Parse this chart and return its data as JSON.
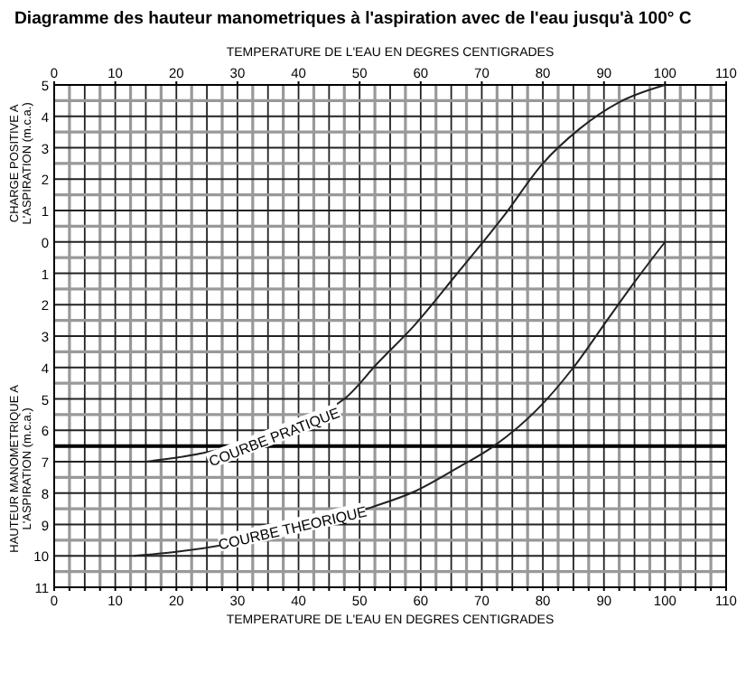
{
  "chart_data": {
    "type": "line",
    "title": "Diagramme des hauteur manometriques à l'aspiration avec de l'eau jusqu'à 100° C",
    "xlabel": "TEMPERATURE DE L'EAU EN DEGRES CENTIGRADES",
    "x2label": "TEMPERATURE DE L'EAU EN DEGRES CENTIGRADES",
    "ylabel": "CHARGE POSITIVE A L'ASPIRATION (m.c.a.)",
    "xlim": [
      0,
      110
    ],
    "x2lim": [
      0,
      110
    ],
    "xticks": [
      0,
      {
        "value": 2.5,
        "label": null
      },
      {
        "value": 5,
        "label": null
      },
      {
        "value": 7.5,
        "label": null
      },
      10,
      {
        "value": 12.5,
        "label": null
      },
      {
        "value": 15,
        "label": null
      },
      {
        "value": 17.5,
        "label": null
      },
      20,
      {
        "value": 22.5,
        "label": null
      },
      {
        "value": 25,
        "label": null
      },
      {
        "value": 27.5,
        "label": null
      },
      30,
      {
        "value": 32.5,
        "label": null
      },
      {
        "value": 35,
        "label": null
      },
      {
        "value": 37.5,
        "label": null
      },
      40,
      {
        "value": 42.5,
        "label": null
      },
      {
        "value": 45,
        "label": null
      },
      {
        "value": 47.5,
        "label": null
      },
      50,
      {
        "value": 52.5,
        "label": null
      },
      {
        "value": 55,
        "label": null
      },
      {
        "value": 57.5,
        "label": null
      },
      60,
      {
        "value": 62.5,
        "label": null
      },
      {
        "value": 65,
        "label": null
      },
      {
        "value": 67.5,
        "label": null
      },
      70,
      {
        "value": 72.5,
        "label": null
      },
      {
        "value": 75,
        "label": null
      },
      {
        "value": 77.5,
        "label": null
      },
      80,
      {
        "value": 82.5,
        "label": null
      },
      {
        "value": 85,
        "label": null
      },
      {
        "value": 87.5,
        "label": null
      },
      90,
      {
        "value": 92.5,
        "label": null
      },
      {
        "value": 95,
        "label": null
      },
      {
        "value": 97.5,
        "label": null
      },
      100,
      {
        "value": 102.5,
        "label": null
      },
      {
        "value": 105,
        "label": null
      },
      {
        "value": 107.5,
        "label": null
      },
      110
    ],
    "x2ticks": [
      0,
      10,
      20,
      30,
      40,
      50,
      60,
      70,
      80,
      90,
      100,
      110
    ],
    "ylim": [
      -11,
      5
    ],
    "yticks": [
      5,
      {
        "value": 4.5,
        "label": null
      },
      4,
      {
        "value": 3.5,
        "label": null
      },
      3,
      {
        "value": 2.5,
        "label": null
      },
      2,
      {
        "value": 1.5,
        "label": null
      },
      1,
      {
        "value": 0.5,
        "label": null
      },
      0,
      {
        "value": -0.5,
        "label": null
      },
      {
        "value": -1,
        "label": "1"
      },
      {
        "value": -1.5,
        "label": null
      },
      {
        "value": -2,
        "label": "2"
      },
      {
        "value": -2.5,
        "label": null
      },
      {
        "value": -3,
        "label": "3"
      },
      {
        "value": -3.5,
        "label": null
      },
      {
        "value": -4,
        "label": "4"
      },
      {
        "value": -4.5,
        "label": null
      },
      {
        "value": -5,
        "label": "5"
      },
      {
        "value": -5.5,
        "label": null
      },
      {
        "value": -6,
        "label": "6"
      },
      {
        "value": -6.5,
        "label": null
      },
      {
        "value": -7,
        "label": "7"
      },
      {
        "value": -7.5,
        "label": null
      },
      {
        "value": -8,
        "label": "8"
      },
      {
        "value": -8.5,
        "label": null
      },
      {
        "value": -9,
        "label": "9"
      },
      {
        "value": -9.5,
        "label": null
      },
      {
        "value": -10,
        "label": "10"
      },
      {
        "value": -10.5,
        "label": null
      },
      {
        "value": -11,
        "label": "11"
      }
    ],
    "grid": true,
    "ref_lines": [
      {
        "axis": "y",
        "value": -6.5,
        "color": "#000000"
      }
    ],
    "series": [
      {
        "color": "#222222",
        "x": [
          15,
          25,
          47.5,
          53,
          59,
          66,
          73.5,
          80,
          86,
          92.5,
          100
        ],
        "values": [
          -7,
          -6.7,
          -5,
          -3.85,
          -2.65,
          -1,
          0.8,
          2.5,
          3.6,
          4.45,
          5
        ]
      },
      {
        "color": "#222222",
        "x": [
          13,
          20,
          52,
          59,
          66,
          72,
          79,
          85,
          90.5,
          95.5,
          100
        ],
        "values": [
          -10,
          -9.87,
          -8.45,
          -7.95,
          -7.2,
          -6.5,
          -5.35,
          -4,
          -2.5,
          -1.15,
          0
        ]
      }
    ],
    "annotations": [
      "HAUTEUR MANOMETRIQUE A L'ASPIRATION (m.c.a.)",
      {
        "text": "COURBE PRATIQUE",
        "x": 36,
        "y": -6.2
      },
      {
        "text": "COURBE THEORIQUE",
        "x": 39,
        "y": -9.1
      }
    ]
  }
}
